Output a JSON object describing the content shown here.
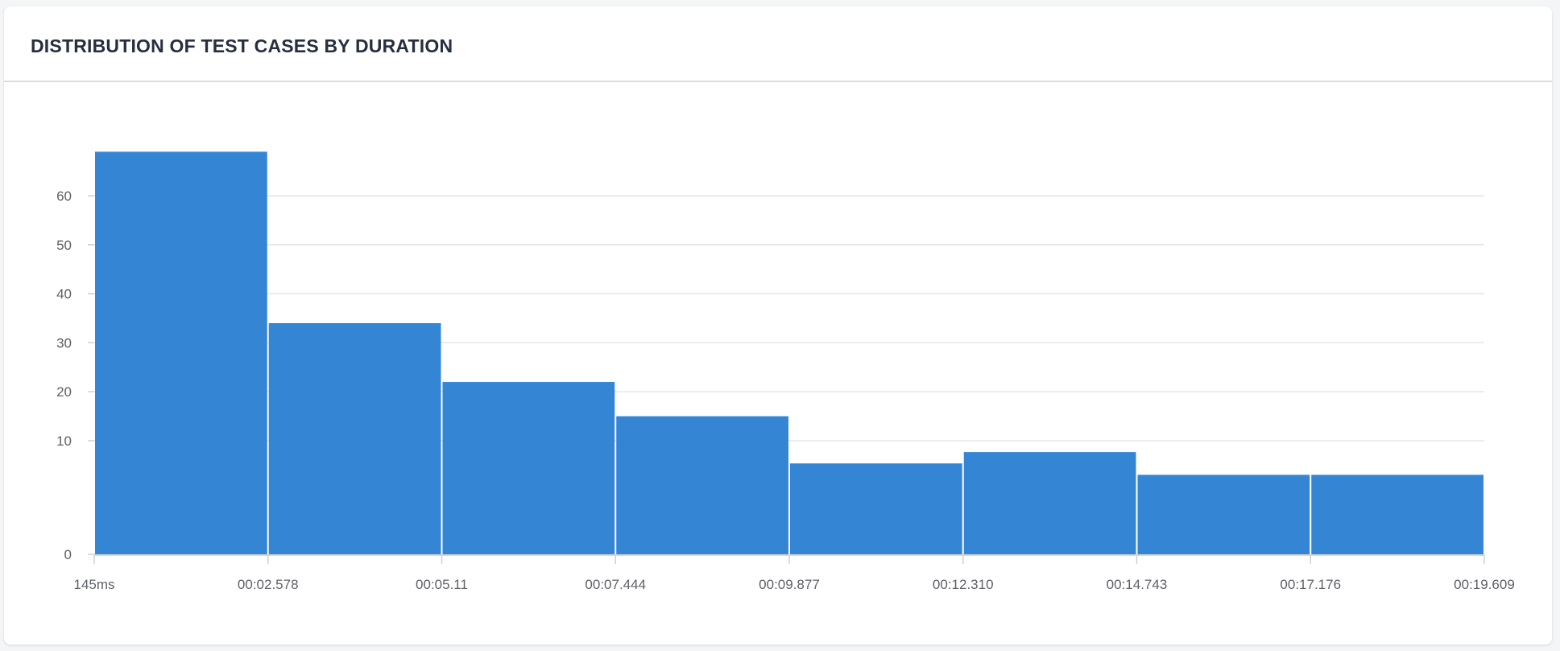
{
  "card": {
    "title": "DISTRIBUTION OF TEST CASES BY DURATION"
  },
  "chart_data": {
    "type": "bar",
    "title": "DISTRIBUTION OF TEST CASES BY DURATION",
    "xlabel": "",
    "ylabel": "",
    "bin_edges": [
      "145ms",
      "00:02.578",
      "00:05.11",
      "00:07.444",
      "00:09.877",
      "00:12.310",
      "00:14.743",
      "00:17.176",
      "00:19.609"
    ],
    "values": [
      69,
      34,
      22,
      15,
      8,
      9,
      7,
      7
    ],
    "y_ticks": [
      0,
      10,
      20,
      30,
      40,
      50,
      60
    ],
    "ylim": [
      0,
      70
    ],
    "grid": true,
    "bar_color": "#3486d5"
  }
}
